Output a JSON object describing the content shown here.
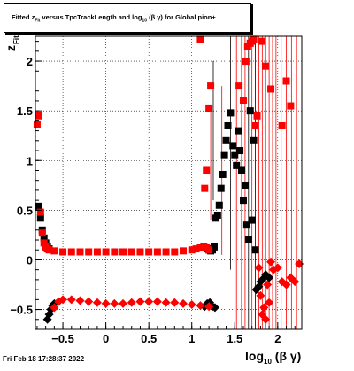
{
  "title": {
    "prefix": "Fitted",
    "z_sub": "Fit",
    "middle": "versus TpcTrackLength and log",
    "log_sub": "10",
    "suffix": "(β γ) for Global pion+"
  },
  "timestamp": "Fri Feb 18 17:28:37 2022",
  "axes": {
    "xlabel_main": "log",
    "xlabel_sub": "10",
    "xlabel_tail": "(β γ)",
    "ylabel_main": "z",
    "ylabel_sub": "Fit"
  },
  "chart_data": {
    "type": "scatter",
    "xlim": [
      -0.82,
      2.28
    ],
    "ylim": [
      -0.7,
      2.25
    ],
    "xticks": [
      -0.5,
      0,
      0.5,
      1,
      1.5,
      2
    ],
    "xtick_labels": [
      "−0.5",
      "0",
      "0.5",
      "1",
      "1.5",
      "2"
    ],
    "yticks": [
      -0.5,
      0,
      0.5,
      1,
      1.5,
      2
    ],
    "ytick_labels": [
      "−0.5",
      "0",
      "0.5",
      "1",
      "1.5",
      "2"
    ],
    "grid": true,
    "colors": {
      "black": "#000000",
      "red": "#ff0000"
    },
    "series": [
      {
        "color": "#000000",
        "marker": "square",
        "points": [
          [
            -0.78,
            0.54
          ],
          [
            -0.76,
            0.42
          ],
          [
            -0.74,
            0.3
          ],
          [
            -0.72,
            0.22
          ],
          [
            -0.7,
            0.17
          ],
          [
            -0.68,
            0.13
          ],
          [
            -0.66,
            0.11
          ],
          [
            1.18,
            0.11
          ],
          [
            1.2,
            0.1
          ],
          [
            1.22,
            0.09
          ],
          [
            1.24,
            0.1
          ],
          [
            1.26,
            0.13
          ],
          [
            1.28,
            0.42
          ],
          [
            1.3,
            0.45
          ],
          [
            1.32,
            0.55
          ],
          [
            1.34,
            0.72
          ],
          [
            1.36,
            0.86
          ],
          [
            1.38,
            1.05
          ],
          [
            1.4,
            1.2
          ],
          [
            1.42,
            1.35
          ],
          [
            1.45,
            1.48
          ],
          [
            1.48,
            1.15
          ],
          [
            1.5,
            1.05
          ],
          [
            1.52,
            0.95
          ],
          [
            1.54,
            1.3
          ],
          [
            1.56,
            1.1
          ],
          [
            1.58,
            0.9
          ],
          [
            1.6,
            0.6
          ],
          [
            1.62,
            0.75
          ],
          [
            1.64,
            0.35
          ],
          [
            1.66,
            0.2
          ],
          [
            1.68,
            1.5
          ],
          [
            1.7,
            0.4
          ],
          [
            1.72,
            1.2
          ],
          [
            1.74,
            0.1
          ]
        ]
      },
      {
        "color": "#000000",
        "marker": "diamond",
        "points": [
          [
            -0.68,
            -0.6
          ],
          [
            -0.66,
            -0.55
          ],
          [
            -0.64,
            -0.5
          ],
          [
            -0.62,
            -0.46
          ],
          [
            -0.6,
            -0.44
          ],
          [
            1.15,
            -0.47
          ],
          [
            1.18,
            -0.44
          ],
          [
            1.21,
            -0.43
          ],
          [
            1.24,
            -0.47
          ],
          [
            1.27,
            -0.48
          ],
          [
            1.75,
            -0.3
          ],
          [
            1.78,
            -0.27
          ],
          [
            1.8,
            -0.22
          ],
          [
            1.82,
            -0.2
          ],
          [
            1.86,
            -0.15
          ],
          [
            1.9,
            -0.18
          ]
        ]
      },
      {
        "color": "#ff0000",
        "marker": "square",
        "points": [
          [
            -0.8,
            1.36
          ],
          [
            -0.78,
            1.45
          ],
          [
            -0.76,
            0.48
          ],
          [
            -0.74,
            0.27
          ],
          [
            -0.72,
            0.17
          ],
          [
            -0.7,
            0.13
          ],
          [
            -0.68,
            0.11
          ],
          [
            -0.66,
            0.1
          ],
          [
            -0.6,
            0.09
          ],
          [
            -0.5,
            0.08
          ],
          [
            -0.4,
            0.08
          ],
          [
            -0.3,
            0.08
          ],
          [
            -0.2,
            0.08
          ],
          [
            -0.1,
            0.08
          ],
          [
            0,
            0.08
          ],
          [
            0.1,
            0.08
          ],
          [
            0.2,
            0.08
          ],
          [
            0.3,
            0.08
          ],
          [
            0.4,
            0.08
          ],
          [
            0.5,
            0.08
          ],
          [
            0.6,
            0.08
          ],
          [
            0.7,
            0.08
          ],
          [
            0.8,
            0.08
          ],
          [
            0.9,
            0.09
          ],
          [
            1.0,
            0.1
          ],
          [
            1.05,
            0.11
          ],
          [
            1.1,
            0.12
          ],
          [
            1.14,
            0.13
          ],
          [
            1.17,
            0.12
          ],
          [
            1.2,
            0.1
          ],
          [
            1.15,
            0.72
          ],
          [
            1.17,
            0.9
          ],
          [
            1.2,
            1.52
          ],
          [
            1.22,
            1.75
          ],
          [
            1.1,
            2.22
          ],
          [
            1.55,
            1.75
          ],
          [
            1.6,
            1.6
          ],
          [
            1.63,
            2.0
          ],
          [
            1.65,
            2.15
          ],
          [
            1.68,
            2.18
          ],
          [
            1.7,
            2.2
          ],
          [
            1.72,
            2.22
          ],
          [
            1.74,
            1.35
          ],
          [
            1.76,
            1.45
          ],
          [
            1.82,
            2.2
          ],
          [
            1.86,
            1.95
          ],
          [
            1.92,
            1.72
          ],
          [
            2.05,
            1.35
          ],
          [
            2.1,
            1.8
          ],
          [
            2.15,
            1.55
          ]
        ]
      },
      {
        "color": "#ff0000",
        "marker": "diamond",
        "points": [
          [
            -0.6,
            -0.48
          ],
          [
            -0.55,
            -0.42
          ],
          [
            -0.5,
            -0.4
          ],
          [
            -0.4,
            -0.4
          ],
          [
            -0.3,
            -0.41
          ],
          [
            -0.2,
            -0.42
          ],
          [
            -0.1,
            -0.43
          ],
          [
            0,
            -0.44
          ],
          [
            0.1,
            -0.44
          ],
          [
            0.2,
            -0.44
          ],
          [
            0.3,
            -0.43
          ],
          [
            0.4,
            -0.42
          ],
          [
            0.5,
            -0.42
          ],
          [
            0.6,
            -0.42
          ],
          [
            0.7,
            -0.43
          ],
          [
            0.8,
            -0.43
          ],
          [
            0.9,
            -0.44
          ],
          [
            1.0,
            -0.45
          ],
          [
            1.1,
            -0.46
          ],
          [
            1.2,
            -0.47
          ],
          [
            1.78,
            -0.08
          ],
          [
            1.8,
            -0.36
          ],
          [
            1.82,
            -0.55
          ],
          [
            1.84,
            -0.48
          ],
          [
            1.86,
            -0.6
          ],
          [
            1.88,
            -0.25
          ],
          [
            1.92,
            -0.02
          ],
          [
            1.95,
            -0.1
          ],
          [
            2.0,
            -0.08
          ],
          [
            2.05,
            -0.22
          ],
          [
            2.1,
            -0.25
          ],
          [
            2.15,
            -0.18
          ],
          [
            2.25,
            -0.04
          ],
          [
            2.2,
            -0.22
          ],
          [
            1.9,
            -0.43
          ]
        ]
      }
    ],
    "error_bars": [
      {
        "x": 1.22,
        "y": 0.95,
        "err": 0.55,
        "color": "#ff0000"
      },
      {
        "x": 1.25,
        "y": 1.3,
        "err": 0.7,
        "color": "#000000"
      },
      {
        "x": 1.35,
        "y": 0.9,
        "err": 0.85,
        "color": "#ff0000"
      },
      {
        "x": 1.45,
        "y": 1.1,
        "err": 1.2,
        "color": "#000000"
      },
      {
        "x": 1.52,
        "y": 0.8,
        "err": 1.5,
        "color": "#ff0000"
      },
      {
        "x": 1.58,
        "y": 0.7,
        "err": 1.6,
        "color": "#000000"
      },
      {
        "x": 1.62,
        "y": 0.75,
        "err": 1.7,
        "color": "#ff0000"
      },
      {
        "x": 1.66,
        "y": 0.7,
        "err": 1.8,
        "color": "#000000"
      },
      {
        "x": 1.7,
        "y": 0.8,
        "err": 1.9,
        "color": "#ff0000"
      },
      {
        "x": 1.74,
        "y": 0.7,
        "err": 2.0,
        "color": "#000000"
      },
      {
        "x": 1.78,
        "y": 0.8,
        "err": 2.0,
        "color": "#ff0000"
      },
      {
        "x": 1.82,
        "y": 0.8,
        "err": 2.0,
        "color": "#ff0000"
      },
      {
        "x": 1.86,
        "y": 0.8,
        "err": 2.0,
        "color": "#ff0000"
      },
      {
        "x": 1.9,
        "y": 0.8,
        "err": 2.0,
        "color": "#ff0000"
      },
      {
        "x": 1.94,
        "y": 0.8,
        "err": 2.0,
        "color": "#ff0000"
      },
      {
        "x": 1.98,
        "y": 0.8,
        "err": 2.0,
        "color": "#ff0000"
      },
      {
        "x": 2.04,
        "y": 0.8,
        "err": 2.0,
        "color": "#ff0000"
      },
      {
        "x": 2.1,
        "y": 0.8,
        "err": 2.0,
        "color": "#ff0000"
      },
      {
        "x": 2.16,
        "y": 0.8,
        "err": 2.0,
        "color": "#ff0000"
      },
      {
        "x": 2.22,
        "y": 0.8,
        "err": 2.0,
        "color": "#ff0000"
      }
    ]
  }
}
